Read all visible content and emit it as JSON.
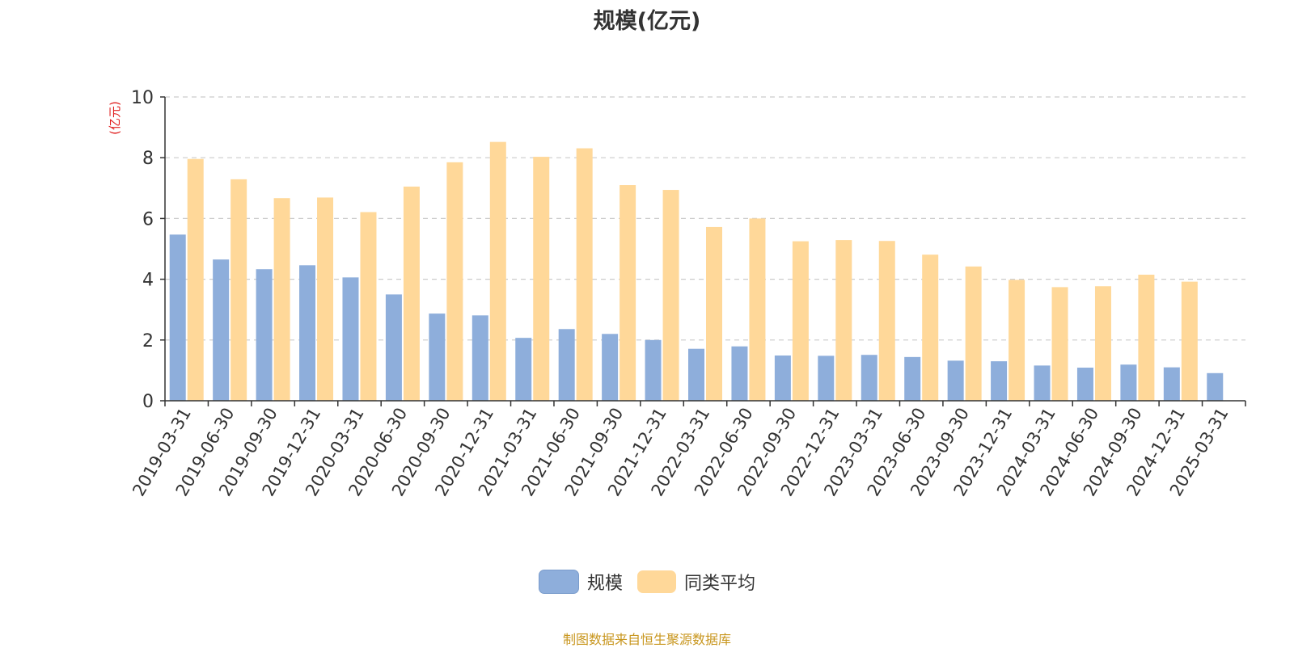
{
  "chart_data": {
    "type": "bar",
    "title": "规模(亿元)",
    "ylabel": "(亿元)",
    "xlabel": "",
    "ylim": [
      0,
      10
    ],
    "yticks": [
      0,
      2,
      4,
      6,
      8,
      10
    ],
    "grid": true,
    "legend_position": "bottom-center",
    "categories": [
      "2019-03-31",
      "2019-06-30",
      "2019-09-30",
      "2019-12-31",
      "2020-03-31",
      "2020-06-30",
      "2020-09-30",
      "2020-12-31",
      "2021-03-31",
      "2021-06-30",
      "2021-09-30",
      "2021-12-31",
      "2022-03-31",
      "2022-06-30",
      "2022-09-30",
      "2022-12-31",
      "2023-03-31",
      "2023-06-30",
      "2023-09-30",
      "2023-12-31",
      "2024-03-31",
      "2024-06-30",
      "2024-09-30",
      "2024-12-31",
      "2025-03-31"
    ],
    "series": [
      {
        "name": "规模",
        "color": "#8eaedb",
        "values": [
          5.47,
          4.65,
          4.33,
          4.46,
          4.06,
          3.5,
          2.87,
          2.81,
          2.07,
          2.36,
          2.2,
          2.0,
          1.71,
          1.79,
          1.49,
          1.48,
          1.51,
          1.44,
          1.32,
          1.3,
          1.16,
          1.09,
          1.19,
          1.1,
          0.91
        ]
      },
      {
        "name": "同类平均",
        "color": "#ffd899",
        "values": [
          7.96,
          7.29,
          6.67,
          6.69,
          6.21,
          7.05,
          7.85,
          8.52,
          8.03,
          8.31,
          7.1,
          6.94,
          5.72,
          6.0,
          5.25,
          5.29,
          5.26,
          4.81,
          4.42,
          3.98,
          3.74,
          3.77,
          4.15,
          3.92,
          null
        ]
      }
    ]
  },
  "source_text": "制图数据来自恒生聚源数据库",
  "colors": {
    "axis": "#333333",
    "grid": "#cccccc",
    "ylabel": "#e02020",
    "source": "#c8961e"
  }
}
